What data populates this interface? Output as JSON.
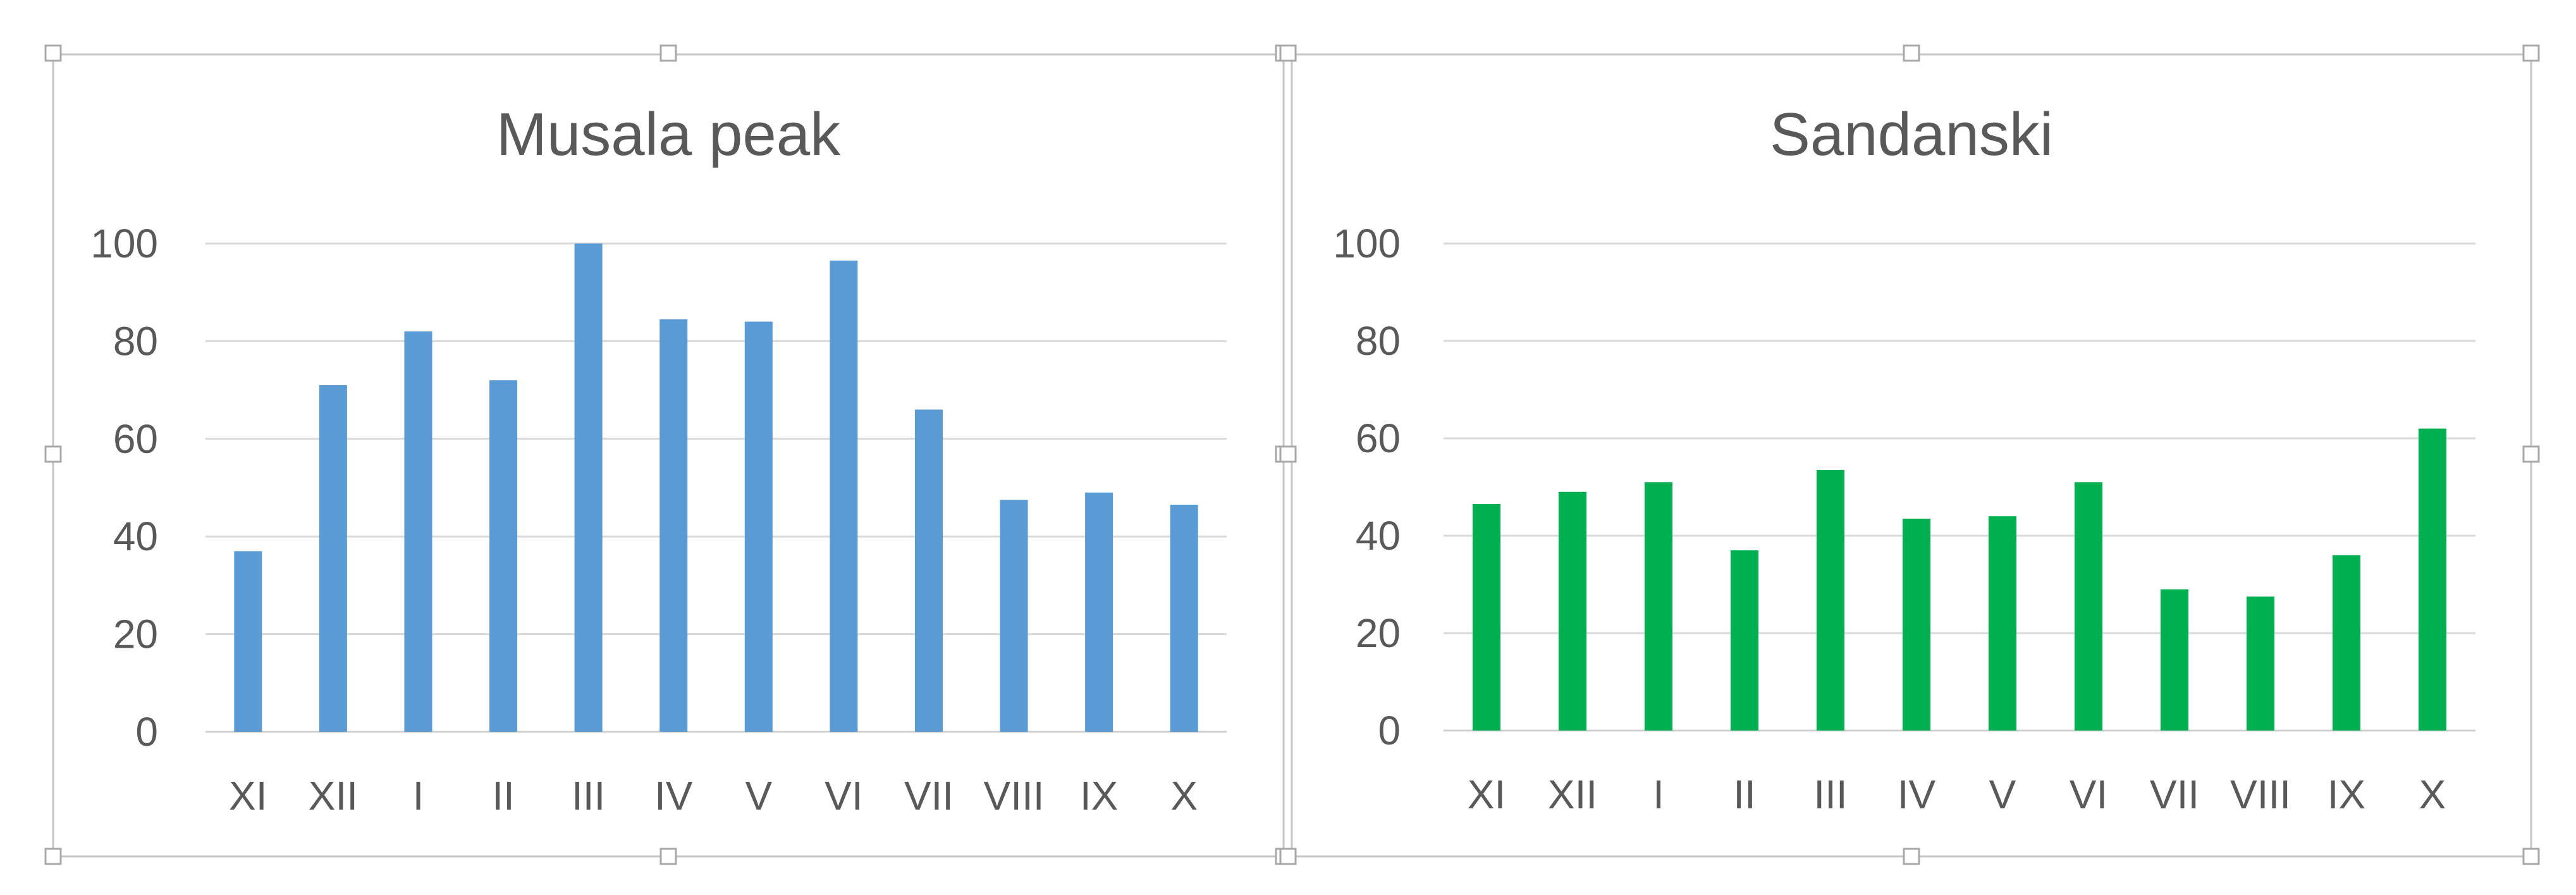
{
  "chart_data": [
    {
      "type": "bar",
      "title": "Musala peak",
      "xlabel": "",
      "ylabel": "",
      "categories": [
        "XI",
        "XII",
        "I",
        "II",
        "III",
        "IV",
        "V",
        "VI",
        "VII",
        "VIII",
        "IX",
        "X"
      ],
      "values": [
        37,
        71,
        82,
        72,
        100,
        84.5,
        84,
        96.5,
        66,
        47.5,
        49,
        46.5
      ],
      "ylim": [
        0,
        100
      ],
      "yticks": [
        "0",
        "20",
        "40",
        "60",
        "80",
        "100"
      ],
      "grid": true,
      "legend": "none",
      "color": "#5b9bd5"
    },
    {
      "type": "bar",
      "title": "Sandanski",
      "xlabel": "",
      "ylabel": "",
      "categories": [
        "XI",
        "XII",
        "I",
        "II",
        "III",
        "IV",
        "V",
        "VI",
        "VII",
        "VIII",
        "IX",
        "X"
      ],
      "values": [
        46.5,
        49,
        51,
        37,
        53.5,
        43.5,
        44,
        51,
        29,
        27.5,
        36,
        62
      ],
      "ylim": [
        0,
        100
      ],
      "yticks": [
        "0",
        "20",
        "40",
        "60",
        "80",
        "100"
      ],
      "grid": true,
      "legend": "none",
      "color": "#00b050"
    }
  ]
}
